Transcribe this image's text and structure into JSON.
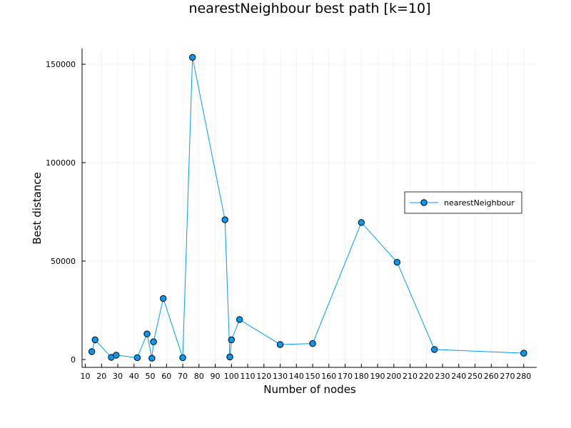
{
  "chart_data": {
    "type": "line",
    "title": "nearestNeighbour best path [k=10]",
    "xlabel": "Number of nodes",
    "ylabel": "Best distance",
    "xlim": [
      8,
      288
    ],
    "ylim": [
      -4000,
      158000
    ],
    "x_ticks": [
      10,
      20,
      30,
      40,
      50,
      60,
      70,
      80,
      90,
      100,
      110,
      120,
      130,
      140,
      150,
      160,
      170,
      180,
      190,
      200,
      210,
      220,
      230,
      240,
      250,
      260,
      270,
      280
    ],
    "y_ticks": [
      0,
      50000,
      100000,
      150000
    ],
    "grid": true,
    "legend_position": "right",
    "series": [
      {
        "name": "nearestNeighbour",
        "color": "#009AFA",
        "marker": "circle",
        "x": [
          14,
          16,
          26,
          29,
          42,
          48,
          51,
          52,
          58,
          70,
          76,
          96,
          99,
          100,
          105,
          130,
          150,
          180,
          202,
          225,
          280
        ],
        "y": [
          4000,
          10000,
          1100,
          2200,
          900,
          13000,
          650,
          9000,
          31000,
          900,
          153500,
          71000,
          1300,
          10000,
          20300,
          7600,
          8100,
          69600,
          49400,
          5100,
          3200
        ]
      }
    ]
  }
}
